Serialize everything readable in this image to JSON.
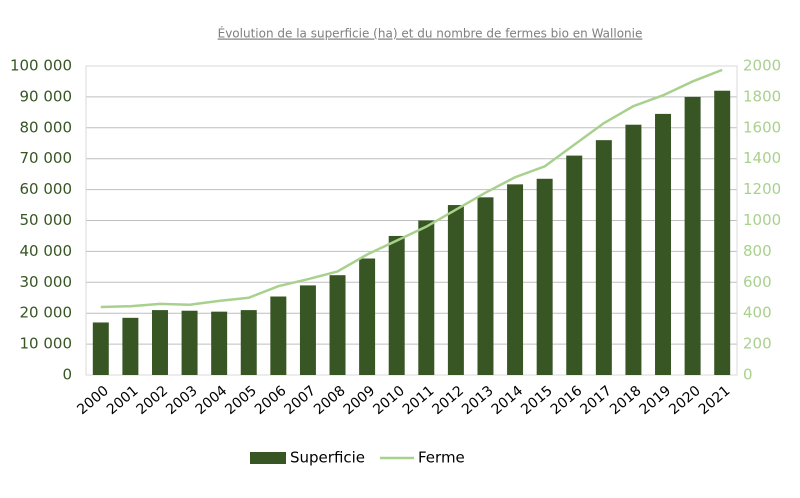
{
  "chart_data": {
    "type": "bar",
    "title": "Évolution de la superficie (ha) et du nombre de fermes bio en Wallonie",
    "categories": [
      "2000",
      "2001",
      "2002",
      "2003",
      "2004",
      "2005",
      "2006",
      "2007",
      "2008",
      "2009",
      "2010",
      "2011",
      "2012",
      "2013",
      "2014",
      "2015",
      "2016",
      "2017",
      "2018",
      "2019",
      "2020",
      "2021"
    ],
    "series": [
      {
        "name": "Superficie",
        "type": "bar",
        "color": "#375623",
        "values": [
          17000,
          18500,
          21000,
          20800,
          20500,
          21000,
          25400,
          29000,
          32300,
          37700,
          45000,
          50000,
          55000,
          57500,
          61700,
          63500,
          71000,
          76000,
          81000,
          84500,
          90000,
          92000
        ]
      },
      {
        "name": "Ferme",
        "type": "line",
        "axis": "y2",
        "color": "#a9d18e",
        "values": [
          440,
          445,
          460,
          455,
          480,
          500,
          575,
          620,
          670,
          780,
          870,
          960,
          1070,
          1180,
          1280,
          1350,
          1490,
          1630,
          1740,
          1810,
          1900,
          1975
        ]
      }
    ],
    "ylim": [
      0,
      100000
    ],
    "yticks": [
      {
        "value": 0,
        "label": "0"
      },
      {
        "value": 10000,
        "label": "10 000"
      },
      {
        "value": 20000,
        "label": "20 000"
      },
      {
        "value": 30000,
        "label": "30 000"
      },
      {
        "value": 40000,
        "label": "40 000"
      },
      {
        "value": 50000,
        "label": "50 000"
      },
      {
        "value": 60000,
        "label": "60 000"
      },
      {
        "value": 70000,
        "label": "70 000"
      },
      {
        "value": 80000,
        "label": "80 000"
      },
      {
        "value": 90000,
        "label": "90 000"
      },
      {
        "value": 100000,
        "label": "100 000"
      }
    ],
    "y2lim": [
      0,
      2000
    ],
    "y2ticks": [
      0,
      200,
      400,
      600,
      800,
      1000,
      1200,
      1400,
      1600,
      1800,
      2000
    ],
    "grid": true,
    "legend": "bottom"
  }
}
